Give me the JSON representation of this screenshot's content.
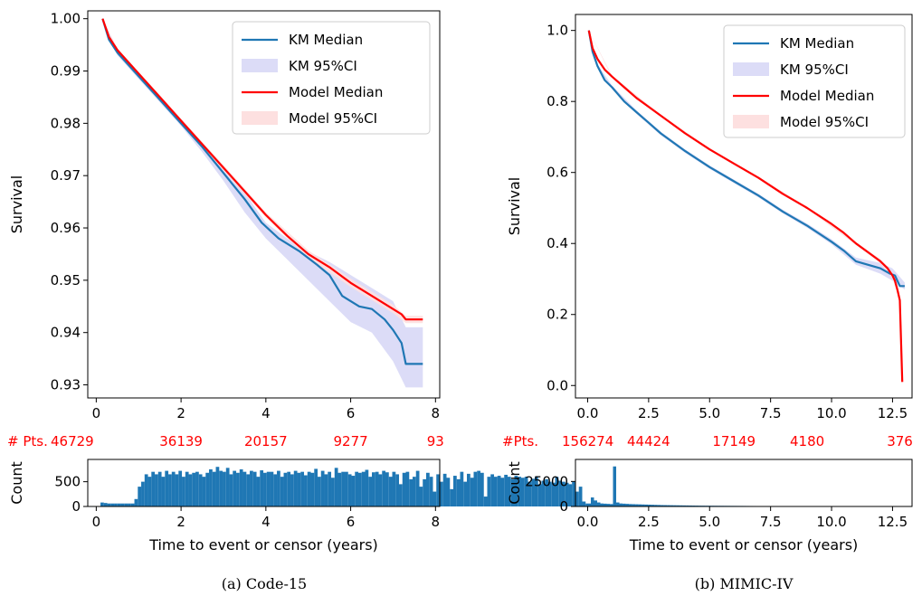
{
  "legend": {
    "entries": [
      "KM Median",
      "KM 95%CI",
      "Model Median",
      "Model 95%CI"
    ]
  },
  "colors": {
    "km": "#1f77b4",
    "km_ci": "#dcdcf7",
    "model": "#ff0000",
    "model_ci": "#fde0e0"
  },
  "chart_data": [
    {
      "id": "a",
      "type": "line",
      "caption": "(a)  Code-15",
      "ylabel": "Survival",
      "xlim": [
        -0.2,
        8.1
      ],
      "ylim": [
        0.9275,
        1.0015
      ],
      "xticks": [
        0,
        2,
        4,
        6,
        8
      ],
      "yticks": [
        0.93,
        0.94,
        0.95,
        0.96,
        0.97,
        0.98,
        0.99,
        1.0
      ],
      "ytick_labels": [
        "0.93",
        "0.94",
        "0.95",
        "0.96",
        "0.97",
        "0.98",
        "0.99",
        "1.00"
      ],
      "series": [
        {
          "name": "KM Median",
          "x": [
            0.15,
            0.3,
            0.5,
            1.0,
            1.5,
            2.0,
            2.5,
            3.0,
            3.5,
            3.9,
            4.3,
            4.8,
            5.2,
            5.5,
            5.8,
            6.2,
            6.5,
            6.8,
            7.0,
            7.2,
            7.3,
            7.7
          ],
          "y": [
            1.0,
            0.996,
            0.9935,
            0.989,
            0.9845,
            0.98,
            0.9755,
            0.9705,
            0.9655,
            0.961,
            0.958,
            0.9555,
            0.953,
            0.951,
            0.947,
            0.945,
            0.9445,
            0.9425,
            0.9405,
            0.938,
            0.934,
            0.934
          ]
        },
        {
          "name": "Model Median",
          "x": [
            0.15,
            0.3,
            0.5,
            1.0,
            1.5,
            2.0,
            2.5,
            3.0,
            3.5,
            4.0,
            4.5,
            5.0,
            5.5,
            6.0,
            6.5,
            7.0,
            7.2,
            7.3,
            7.7
          ],
          "y": [
            1.0,
            0.9965,
            0.994,
            0.9895,
            0.985,
            0.9805,
            0.976,
            0.9715,
            0.967,
            0.9625,
            0.9585,
            0.955,
            0.9525,
            0.9495,
            0.947,
            0.9445,
            0.9435,
            0.9425,
            0.9425
          ]
        }
      ],
      "ci": {
        "km": {
          "x": [
            0.15,
            0.5,
            1.0,
            1.5,
            2.0,
            2.5,
            3.0,
            3.5,
            4.0,
            4.5,
            5.0,
            5.5,
            6.0,
            6.5,
            7.0,
            7.3,
            7.7
          ],
          "lo": [
            1.0,
            0.993,
            0.9885,
            0.984,
            0.9795,
            0.9745,
            0.969,
            0.963,
            0.958,
            0.954,
            0.95,
            0.946,
            0.942,
            0.94,
            0.9345,
            0.9295,
            0.9295
          ],
          "hi": [
            1.0,
            0.9942,
            0.9895,
            0.985,
            0.9805,
            0.976,
            0.9712,
            0.9668,
            0.961,
            0.958,
            0.9555,
            0.9535,
            0.951,
            0.9485,
            0.946,
            0.941,
            0.941
          ]
        },
        "model": {
          "x": [
            0.15,
            0.5,
            1.0,
            2.0,
            3.0,
            4.0,
            5.0,
            6.0,
            7.0,
            7.3,
            7.7
          ],
          "lo": [
            1.0,
            0.9937,
            0.9892,
            0.9801,
            0.971,
            0.962,
            0.9543,
            0.9487,
            0.9437,
            0.9418,
            0.9418
          ],
          "hi": [
            1.0,
            0.9943,
            0.9898,
            0.9809,
            0.972,
            0.963,
            0.9557,
            0.9503,
            0.9453,
            0.9432,
            0.9432
          ]
        }
      },
      "pts_label": "# Pts.",
      "pts": [
        {
          "x": 0,
          "label": "46729"
        },
        {
          "x": 2,
          "label": "36139"
        },
        {
          "x": 4,
          "label": "20157"
        },
        {
          "x": 6,
          "label": "9277"
        },
        {
          "x": 8,
          "label": "93"
        }
      ],
      "hist": {
        "xlabel": "Time to event or censor (years)",
        "ylabel": "Count",
        "xlim": [
          -0.2,
          8.1
        ],
        "ylim": [
          0,
          950
        ],
        "xticks": [
          0,
          2,
          4,
          6,
          8
        ],
        "yticks": [
          0,
          500
        ],
        "ytick_labels": [
          "0",
          "500"
        ],
        "x_start": 0.1,
        "bin_width": 0.08,
        "counts": [
          80,
          70,
          60,
          60,
          60,
          60,
          60,
          60,
          60,
          60,
          150,
          400,
          500,
          650,
          600,
          700,
          650,
          700,
          600,
          720,
          650,
          700,
          650,
          720,
          600,
          700,
          650,
          680,
          700,
          650,
          600,
          680,
          750,
          700,
          800,
          720,
          700,
          780,
          650,
          720,
          680,
          750,
          700,
          650,
          720,
          700,
          600,
          730,
          680,
          700,
          700,
          650,
          720,
          600,
          680,
          700,
          650,
          720,
          680,
          700,
          630,
          700,
          680,
          760,
          600,
          720,
          650,
          700,
          580,
          780,
          680,
          700,
          700,
          650,
          620,
          700,
          680,
          700,
          740,
          600,
          690,
          700,
          650,
          720,
          690,
          600,
          700,
          650,
          450,
          680,
          700,
          550,
          600,
          720,
          400,
          550,
          680,
          600,
          300,
          650,
          500,
          660,
          580,
          350,
          620,
          550,
          700,
          500,
          660,
          580,
          700,
          720,
          680,
          200,
          600,
          650,
          600,
          620,
          580,
          640,
          600,
          550,
          620,
          600,
          580,
          600,
          500,
          560,
          600,
          450,
          520,
          550,
          500,
          480,
          600,
          520,
          500,
          480,
          450,
          500,
          300,
          400,
          100,
          60,
          60,
          40,
          30
        ]
      }
    },
    {
      "id": "b",
      "type": "line",
      "caption": "(b) MIMIC-IV",
      "ylabel": "Survival",
      "xlim": [
        -0.5,
        13.3
      ],
      "ylim": [
        -0.035,
        1.045
      ],
      "xticks": [
        0,
        2.5,
        5,
        7.5,
        10,
        12.5
      ],
      "xtick_labels": [
        "0.0",
        "2.5",
        "5.0",
        "7.5",
        "10.0",
        "12.5"
      ],
      "yticks": [
        0,
        0.2,
        0.4,
        0.6,
        0.8,
        1.0
      ],
      "ytick_labels": [
        "0.0",
        "0.2",
        "0.4",
        "0.6",
        "0.8",
        "1.0"
      ],
      "series": [
        {
          "name": "KM Median",
          "x": [
            0.05,
            0.2,
            0.4,
            0.7,
            1.0,
            1.5,
            2.0,
            2.5,
            3.0,
            4.0,
            5.0,
            6.0,
            7.0,
            8.0,
            9.0,
            10.0,
            10.5,
            11.0,
            11.5,
            12.0,
            12.4,
            12.6,
            12.8,
            13.0
          ],
          "y": [
            1.0,
            0.94,
            0.9,
            0.86,
            0.84,
            0.8,
            0.77,
            0.74,
            0.71,
            0.66,
            0.615,
            0.575,
            0.535,
            0.49,
            0.45,
            0.405,
            0.38,
            0.35,
            0.34,
            0.33,
            0.315,
            0.31,
            0.28,
            0.28
          ]
        },
        {
          "name": "Model Median",
          "x": [
            0.05,
            0.2,
            0.4,
            0.7,
            1.0,
            1.5,
            2.0,
            2.5,
            3.0,
            4.0,
            5.0,
            6.0,
            7.0,
            8.0,
            9.0,
            10.0,
            10.5,
            11.0,
            11.5,
            12.0,
            12.3,
            12.5,
            12.6,
            12.7,
            12.8,
            12.9
          ],
          "y": [
            1.0,
            0.95,
            0.92,
            0.89,
            0.87,
            0.84,
            0.81,
            0.785,
            0.76,
            0.71,
            0.665,
            0.625,
            0.585,
            0.54,
            0.5,
            0.455,
            0.43,
            0.4,
            0.375,
            0.35,
            0.33,
            0.31,
            0.295,
            0.27,
            0.24,
            0.01
          ]
        }
      ],
      "ci": {
        "km": {
          "x": [
            0.05,
            0.4,
            1.0,
            2.0,
            3.0,
            4.0,
            5.0,
            6.0,
            7.0,
            8.0,
            9.0,
            10.0,
            11.0,
            12.0,
            12.5,
            13.0
          ],
          "lo": [
            1.0,
            0.895,
            0.835,
            0.765,
            0.705,
            0.655,
            0.61,
            0.57,
            0.53,
            0.485,
            0.444,
            0.398,
            0.34,
            0.315,
            0.295,
            0.27
          ],
          "hi": [
            1.0,
            0.905,
            0.845,
            0.775,
            0.715,
            0.665,
            0.62,
            0.58,
            0.54,
            0.495,
            0.456,
            0.412,
            0.36,
            0.345,
            0.33,
            0.29
          ]
        },
        "model": {
          "x": [
            0.05,
            1.0,
            3.0,
            5.0,
            7.0,
            9.0,
            11.0,
            12.0,
            12.5,
            12.8
          ],
          "lo": [
            1.0,
            0.867,
            0.757,
            0.662,
            0.582,
            0.497,
            0.396,
            0.344,
            0.302,
            0.235
          ],
          "hi": [
            1.0,
            0.873,
            0.763,
            0.668,
            0.588,
            0.503,
            0.404,
            0.356,
            0.318,
            0.245
          ]
        }
      },
      "pts_label": "#Pts.",
      "pts": [
        {
          "x": 0,
          "label": "156274"
        },
        {
          "x": 2.5,
          "label": "44424"
        },
        {
          "x": 6,
          "label": "17149"
        },
        {
          "x": 9,
          "label": "4180"
        },
        {
          "x": 12.8,
          "label": "376"
        }
      ],
      "hist": {
        "xlabel": "Time to event or censor (years)",
        "ylabel": "Count",
        "xlim": [
          -0.5,
          13.3
        ],
        "ylim": [
          0,
          47000
        ],
        "xticks": [
          0,
          2.5,
          5,
          7.5,
          10,
          12.5
        ],
        "xtick_labels": [
          "0.0",
          "2.5",
          "5.0",
          "7.5",
          "10.0",
          "12.5"
        ],
        "yticks": [
          0,
          25000
        ],
        "ytick_labels": [
          "0",
          "25000"
        ],
        "x_start": 0.0,
        "bin_width": 0.13,
        "counts": [
          2000,
          9000,
          6000,
          4000,
          3000,
          2800,
          2600,
          2400,
          40000,
          4000,
          3000,
          2800,
          2600,
          2400,
          2300,
          2200,
          2100,
          2000,
          1900,
          1800,
          1700,
          1600,
          1500,
          1400,
          1350,
          1300,
          1250,
          1200,
          1150,
          1100,
          1050,
          1000,
          950,
          900,
          850,
          800,
          780,
          760,
          740,
          720,
          700,
          680,
          660,
          640,
          620,
          600,
          580,
          560,
          540,
          520,
          500,
          480,
          460,
          440,
          420,
          400,
          380,
          360,
          340,
          320,
          300,
          290,
          280,
          270,
          260,
          250,
          240,
          230,
          220,
          210,
          200,
          190,
          180,
          170,
          160,
          150,
          140,
          130,
          120,
          110,
          100,
          95,
          90,
          85,
          80,
          75,
          70,
          65,
          60,
          55,
          50,
          45,
          40,
          35,
          30,
          25,
          20,
          20,
          20,
          15
        ]
      }
    }
  ]
}
